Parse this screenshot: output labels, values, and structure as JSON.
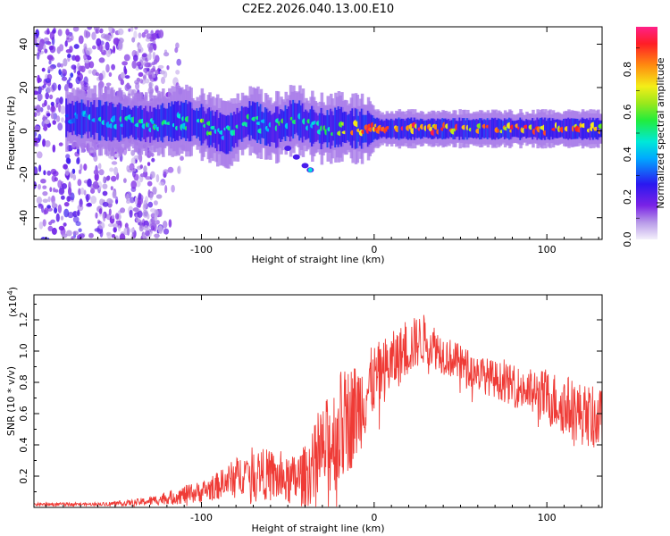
{
  "title": "C2E2.2026.040.13.00.E10",
  "colors": {
    "snr_line": "#ef3b36",
    "axis": "#000000",
    "background": "#ffffff"
  },
  "chart_data": [
    {
      "type": "heatmap",
      "name": "spectrogram",
      "xlabel": "Height of straight line (km)",
      "ylabel": "Frequency (Hz)",
      "xlim": [
        -197,
        132
      ],
      "ylim": [
        -50,
        48
      ],
      "x_ticks": [
        -100,
        0,
        100
      ],
      "x_tick_labels": [
        "-100",
        "0",
        "100"
      ],
      "y_ticks": [
        40,
        20,
        0,
        -20,
        -40
      ],
      "y_tick_labels": [
        "40",
        "20",
        "0",
        "-20",
        "-40"
      ],
      "colorbar": {
        "label": "Normalized spectral amplitude",
        "range": [
          0,
          1
        ],
        "ticks": [
          0.0,
          0.2,
          0.4,
          0.6,
          0.8
        ],
        "tick_labels": [
          "0.0",
          "0.2",
          "0.4",
          "0.6",
          "0.8"
        ]
      },
      "ridge": {
        "x_km": [
          -175,
          -160,
          -150,
          -140,
          -130,
          -120,
          -110,
          -100,
          -90,
          -85,
          -80,
          -75,
          -70,
          -65,
          -60,
          -55,
          -50,
          -45,
          -40,
          -35,
          -30,
          -25,
          -20,
          -10,
          0,
          10,
          20,
          40,
          60,
          80,
          100,
          120,
          130
        ],
        "freq_hz": [
          6,
          5,
          4,
          4,
          3,
          4,
          5,
          3,
          0,
          -2,
          1,
          4,
          5,
          3,
          1,
          2,
          4,
          6,
          3,
          2,
          1,
          1,
          2,
          1,
          1,
          1,
          1,
          1,
          1,
          1,
          1,
          1,
          1
        ],
        "amplitude": [
          0.35,
          0.5,
          0.45,
          0.5,
          0.5,
          0.55,
          0.5,
          0.65,
          0.5,
          0.55,
          0.5,
          0.5,
          0.55,
          0.5,
          0.45,
          0.55,
          0.55,
          0.5,
          0.5,
          0.5,
          0.55,
          0.6,
          0.7,
          0.85,
          0.9,
          0.85,
          0.9,
          0.85,
          0.8,
          0.85,
          0.9,
          0.85,
          0.8
        ]
      },
      "secondary_feature": {
        "x_km": [
          -50,
          -45,
          -40,
          -37
        ],
        "freq_hz": [
          -8,
          -12,
          -16,
          -18
        ]
      }
    },
    {
      "type": "line",
      "name": "snr",
      "xlabel": "Height of straight line (km)",
      "ylabel": "SNR (10 * v/v)",
      "y_multiplier": "(x10^4)",
      "multiplier_base": "(x10",
      "multiplier_exp": "4",
      "multiplier_close": ")",
      "xlim": [
        -197,
        132
      ],
      "ylim": [
        0,
        1.36
      ],
      "x_ticks": [
        -100,
        0,
        100
      ],
      "x_tick_labels": [
        "-100",
        "0",
        "100"
      ],
      "y_ticks": [
        0.2,
        0.4,
        0.6,
        0.8,
        1.0,
        1.2
      ],
      "y_tick_labels": [
        "0.2",
        "0.4",
        "0.6",
        "0.8",
        "1.0",
        "1.2"
      ],
      "envelope": {
        "x_km": [
          -197,
          -160,
          -140,
          -130,
          -120,
          -110,
          -100,
          -90,
          -80,
          -70,
          -60,
          -50,
          -40,
          -30,
          -20,
          -10,
          0,
          10,
          20,
          25,
          30,
          40,
          50,
          60,
          70,
          80,
          90,
          100,
          110,
          120,
          130
        ],
        "mean": [
          0.02,
          0.02,
          0.03,
          0.04,
          0.06,
          0.08,
          0.1,
          0.14,
          0.2,
          0.24,
          0.2,
          0.16,
          0.2,
          0.34,
          0.5,
          0.62,
          0.82,
          0.92,
          1.02,
          1.06,
          1.08,
          0.98,
          0.92,
          0.86,
          0.82,
          0.78,
          0.74,
          0.7,
          0.66,
          0.6,
          0.56
        ],
        "spread": [
          0.01,
          0.01,
          0.02,
          0.03,
          0.04,
          0.06,
          0.07,
          0.09,
          0.12,
          0.15,
          0.17,
          0.15,
          0.2,
          0.3,
          0.38,
          0.32,
          0.22,
          0.2,
          0.18,
          0.17,
          0.16,
          0.13,
          0.12,
          0.12,
          0.12,
          0.13,
          0.15,
          0.18,
          0.2,
          0.2,
          0.2
        ]
      }
    }
  ]
}
